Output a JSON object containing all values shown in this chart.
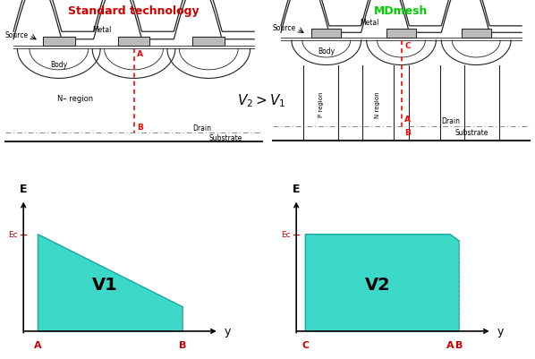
{
  "title_left": "Standard technology",
  "title_right": "MDmesh",
  "title_left_color": "#cc0000",
  "title_right_color": "#00cc00",
  "bg_color": "#ffffff",
  "cyan_fill": "#3dd9c8",
  "cyan_edge": "#1aaa99",
  "v2_v1_label": "$V_2>V_1$",
  "v1_label": "V1",
  "v2_label": "V2",
  "ec_color": "#cc0000",
  "ab_color": "#cc0000",
  "drain_label": "Drain",
  "substrate_label": "Substrate",
  "source_label": "Source",
  "metal_label": "Metal",
  "body_label": "Body",
  "n_region_left": "N– region",
  "p_region_right": "P region",
  "n_region_right": "N region",
  "line_color": "#222222"
}
